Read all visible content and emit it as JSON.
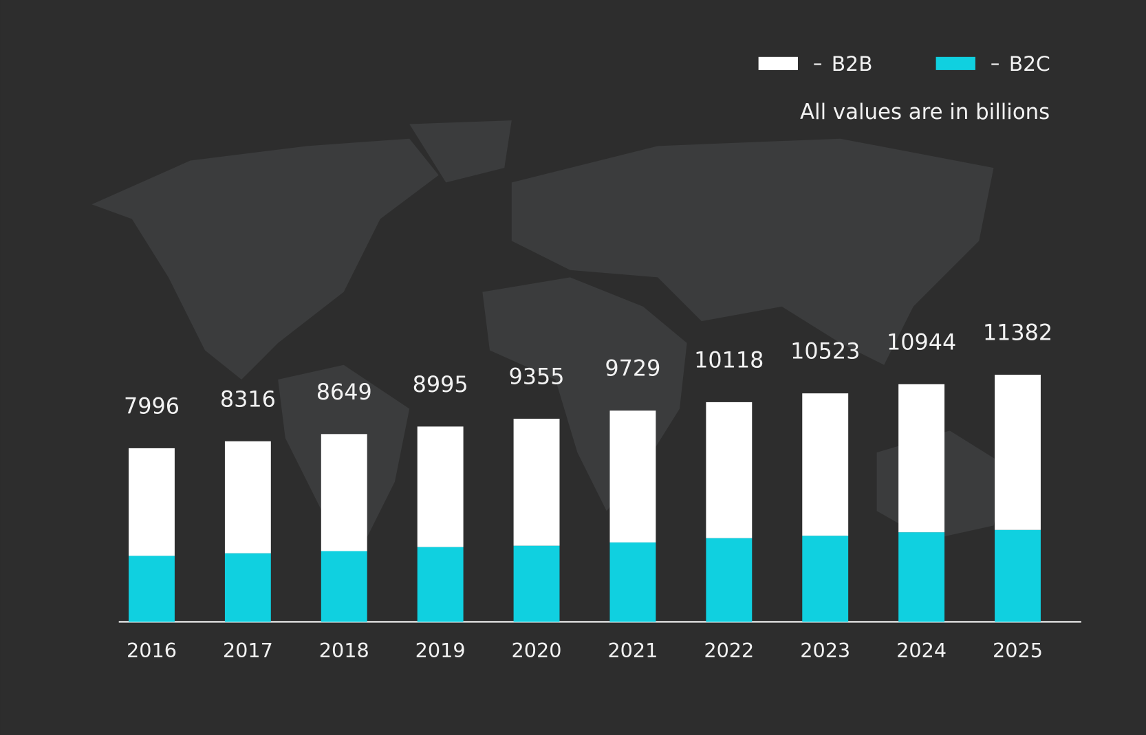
{
  "chart_data": {
    "type": "stacked-bar",
    "annotation": "All values are in billions",
    "categories": [
      "2016",
      "2017",
      "2018",
      "2019",
      "2020",
      "2021",
      "2022",
      "2023",
      "2024",
      "2025"
    ],
    "series": [
      {
        "name": "B2C",
        "color": "#10d0e0",
        "values": [
          3040,
          3160,
          3260,
          3445,
          3508,
          3658,
          3855,
          3967,
          4126,
          4234
        ]
      },
      {
        "name": "B2B",
        "color": "#ffffff",
        "values": [
          4956,
          5156,
          5389,
          5550,
          5847,
          6071,
          6263,
          6556,
          6818,
          7148
        ]
      }
    ],
    "totals": [
      7996,
      8316,
      8649,
      8995,
      9355,
      9729,
      10118,
      10523,
      10944,
      11382
    ],
    "ylim": [
      0,
      12000
    ],
    "legend": "top-right"
  }
}
